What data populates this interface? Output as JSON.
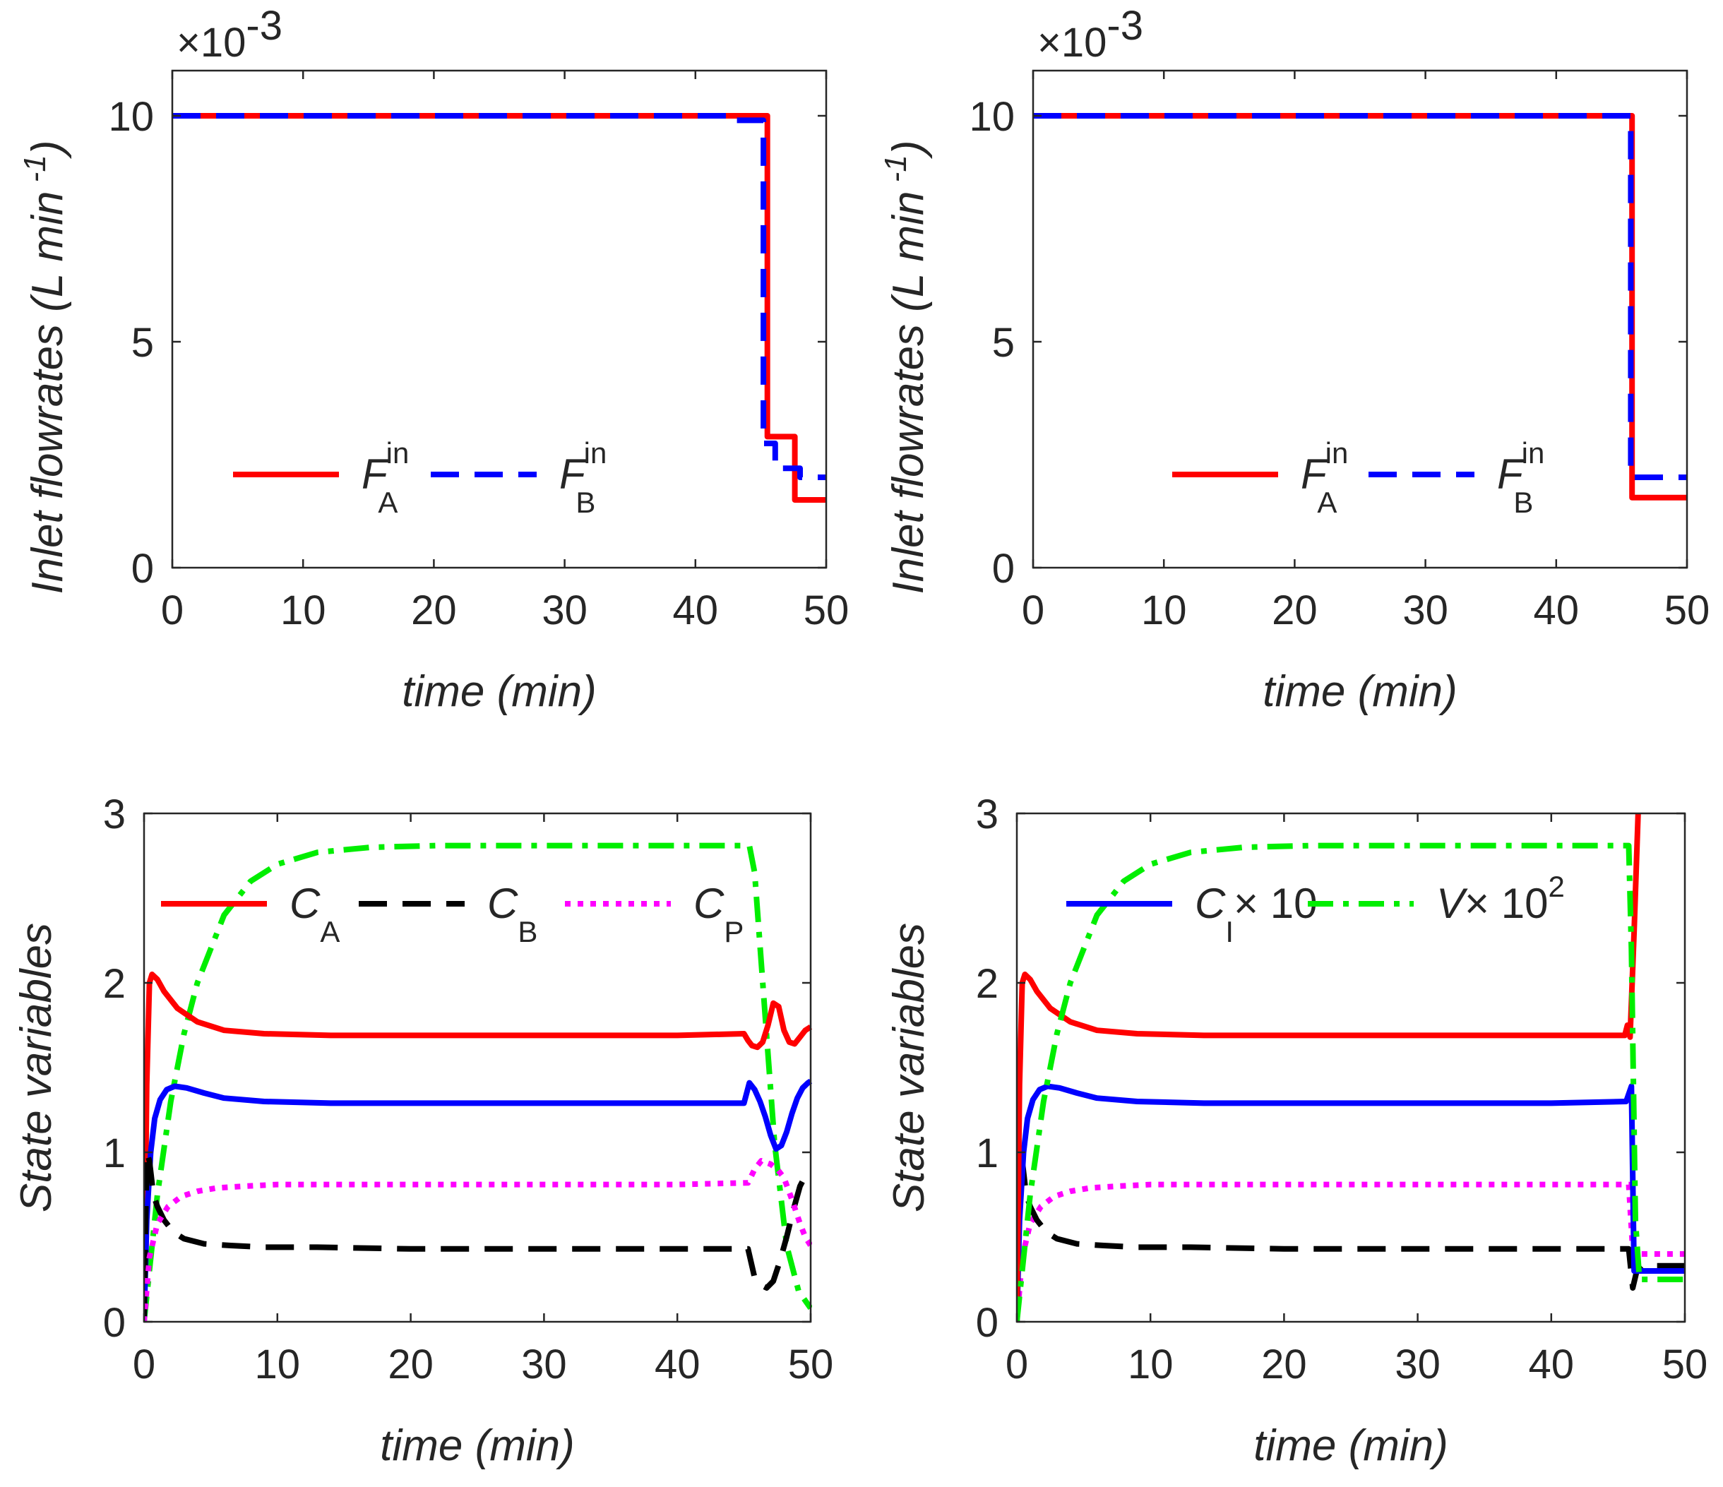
{
  "chart_data": [
    {
      "type": "line",
      "panel": "top-left",
      "xlabel": "time (min)",
      "ylabel_parts": [
        "Inlet flowrates (",
        "L min",
        " -1",
        ")"
      ],
      "y_multiplier": {
        "base": "×10",
        "exp": "-3"
      },
      "xlim": [
        0,
        50
      ],
      "ylim": [
        0,
        11
      ],
      "xticks": [
        "0",
        "10",
        "20",
        "30",
        "40",
        "50"
      ],
      "yticks": [
        "0",
        "5",
        "10"
      ],
      "ytick_values": [
        0,
        5,
        10
      ],
      "legend": [
        {
          "var": "F",
          "sub": "A",
          "sup": "in",
          "color": "#ff0000",
          "style": "solid"
        },
        {
          "var": "F",
          "sub": "B",
          "sup": "in",
          "color": "#0000ff",
          "style": "dashed"
        }
      ],
      "series": [
        {
          "name": "F_A^in",
          "color": "#ff0000",
          "style": "solid",
          "x": [
            0,
            45.5,
            45.5,
            47.6,
            47.6,
            50
          ],
          "y": [
            10,
            10,
            2.9,
            2.9,
            1.5,
            1.5
          ]
        },
        {
          "name": "F_B^in",
          "color": "#0000ff",
          "style": "dashed",
          "x": [
            0,
            43,
            43,
            45.2,
            45.2,
            46.1,
            46.1,
            48,
            48,
            50
          ],
          "y": [
            10,
            10,
            9.9,
            9.9,
            2.75,
            2.75,
            2.2,
            2.2,
            2.0,
            2.0
          ]
        }
      ]
    },
    {
      "type": "line",
      "panel": "top-right",
      "xlabel": "time (min)",
      "ylabel_parts": [
        "Inlet flowrates (",
        "L min",
        " -1",
        ")"
      ],
      "y_multiplier": {
        "base": "×10",
        "exp": "-3"
      },
      "xlim": [
        0,
        50
      ],
      "ylim": [
        0,
        11
      ],
      "xticks": [
        "0",
        "10",
        "20",
        "30",
        "40",
        "50"
      ],
      "yticks": [
        "0",
        "5",
        "10"
      ],
      "ytick_values": [
        0,
        5,
        10
      ],
      "legend": [
        {
          "var": "F",
          "sub": "A",
          "sup": "in",
          "color": "#ff0000",
          "style": "solid"
        },
        {
          "var": "F",
          "sub": "B",
          "sup": "in",
          "color": "#0000ff",
          "style": "dashed"
        }
      ],
      "series": [
        {
          "name": "F_A^in",
          "color": "#ff0000",
          "style": "solid",
          "x": [
            0,
            45.8,
            45.8,
            50
          ],
          "y": [
            10,
            10,
            1.55,
            1.55
          ]
        },
        {
          "name": "F_B^in",
          "color": "#0000ff",
          "style": "dashed",
          "x": [
            0,
            45.7,
            45.7,
            50
          ],
          "y": [
            10,
            10,
            2.0,
            2.0
          ]
        }
      ]
    },
    {
      "type": "line",
      "panel": "bottom-left",
      "xlabel": "time (min)",
      "ylabel": "State variables",
      "xlim": [
        0,
        50
      ],
      "ylim": [
        0,
        3
      ],
      "xticks": [
        "0",
        "10",
        "20",
        "30",
        "40",
        "50"
      ],
      "yticks": [
        "0",
        "1",
        "2",
        "3"
      ],
      "ytick_values": [
        0,
        1,
        2,
        3
      ],
      "legend": [
        {
          "var": "C",
          "sub": "A",
          "color": "#ff0000",
          "style": "solid"
        },
        {
          "var": "C",
          "sub": "B",
          "color": "#000000",
          "style": "dashed"
        },
        {
          "var": "C",
          "sub": "P",
          "color": "#ff00ff",
          "style": "dotted"
        }
      ],
      "series": [
        {
          "name": "V×10^2",
          "color": "#00ee00",
          "style": "dashdot",
          "x": [
            0,
            1,
            2,
            3,
            4,
            6,
            8,
            10,
            13,
            17,
            22,
            30,
            40,
            45.4,
            45.8,
            46.5,
            47.3,
            48.2,
            49.1,
            50
          ],
          "y": [
            0,
            0.75,
            1.3,
            1.7,
            2.0,
            2.4,
            2.6,
            2.7,
            2.77,
            2.8,
            2.81,
            2.81,
            2.81,
            2.81,
            2.65,
            1.9,
            1.05,
            0.45,
            0.18,
            0.08
          ]
        },
        {
          "name": "C_A",
          "color": "#ff0000",
          "style": "solid",
          "x": [
            0,
            0.2,
            0.4,
            0.6,
            1,
            1.5,
            2.5,
            4,
            6,
            9,
            14,
            20,
            30,
            40,
            45,
            45.3,
            45.6,
            46,
            46.4,
            46.8,
            47.2,
            47.6,
            48,
            48.4,
            48.8,
            49.2,
            49.6,
            50
          ],
          "y": [
            0,
            1.4,
            2.0,
            2.05,
            2.02,
            1.95,
            1.85,
            1.77,
            1.72,
            1.7,
            1.69,
            1.69,
            1.69,
            1.69,
            1.7,
            1.66,
            1.63,
            1.62,
            1.65,
            1.75,
            1.88,
            1.86,
            1.72,
            1.65,
            1.64,
            1.68,
            1.72,
            1.74
          ]
        },
        {
          "name": "C_I×10",
          "color": "#0000ff",
          "style": "solid",
          "x": [
            0,
            0.2,
            0.5,
            0.8,
            1.2,
            1.7,
            2.3,
            3.2,
            4.5,
            6,
            9,
            14,
            20,
            30,
            40,
            45,
            45.4,
            45.8,
            46.2,
            46.6,
            47,
            47.4,
            47.8,
            48.2,
            48.6,
            49,
            49.4,
            49.8,
            50
          ],
          "y": [
            0,
            0.6,
            1.0,
            1.2,
            1.31,
            1.37,
            1.39,
            1.38,
            1.35,
            1.32,
            1.3,
            1.29,
            1.29,
            1.29,
            1.29,
            1.29,
            1.41,
            1.37,
            1.3,
            1.21,
            1.1,
            1.02,
            1.04,
            1.12,
            1.23,
            1.32,
            1.38,
            1.41,
            1.42
          ]
        },
        {
          "name": "C_B",
          "color": "#000000",
          "style": "dashed",
          "x": [
            0,
            0.2,
            0.4,
            0.7,
            1,
            1.5,
            2.2,
            3,
            4.5,
            6.5,
            9,
            13,
            20,
            30,
            40,
            45.3,
            45.8,
            46.2,
            46.7,
            47.2,
            47.7,
            48.2,
            48.7,
            49.2,
            49.6,
            50
          ],
          "y": [
            0,
            1.0,
            0.95,
            0.75,
            0.68,
            0.6,
            0.53,
            0.49,
            0.46,
            0.45,
            0.44,
            0.44,
            0.43,
            0.43,
            0.43,
            0.43,
            0.26,
            0.22,
            0.2,
            0.24,
            0.36,
            0.5,
            0.66,
            0.8,
            0.86,
            0.88
          ]
        },
        {
          "name": "C_P",
          "color": "#ff00ff",
          "style": "dotted",
          "x": [
            0,
            0.4,
            1,
            1.8,
            2.8,
            4,
            5.5,
            7.5,
            10,
            14,
            20,
            30,
            40,
            45.3,
            45.8,
            46.3,
            47,
            47.5,
            48,
            48.6,
            49.2,
            49.6,
            50
          ],
          "y": [
            0,
            0.38,
            0.58,
            0.68,
            0.74,
            0.77,
            0.79,
            0.8,
            0.81,
            0.81,
            0.81,
            0.81,
            0.81,
            0.82,
            0.9,
            0.95,
            0.93,
            0.9,
            0.85,
            0.72,
            0.58,
            0.5,
            0.45
          ]
        }
      ]
    },
    {
      "type": "line",
      "panel": "bottom-right",
      "xlabel": "time (min)",
      "ylabel": "State variables",
      "xlim": [
        0,
        50
      ],
      "ylim": [
        0,
        3
      ],
      "xticks": [
        "0",
        "10",
        "20",
        "30",
        "40",
        "50"
      ],
      "yticks": [
        "0",
        "1",
        "2",
        "3"
      ],
      "ytick_values": [
        0,
        1,
        2,
        3
      ],
      "legend": [
        {
          "var": "C",
          "sub": "I",
          "suffix": "× 10",
          "color": "#0000ff",
          "style": "solid"
        },
        {
          "var": "V",
          "suffix": "× 10",
          "suffix_sup": "2",
          "color": "#00ee00",
          "style": "dashdot"
        }
      ],
      "series": [
        {
          "name": "C_P",
          "color": "#ff00ff",
          "style": "dotted",
          "x": [
            0,
            0.4,
            1,
            1.8,
            2.8,
            4,
            5.5,
            7.5,
            10,
            14,
            20,
            30,
            40,
            45.8,
            46.1,
            46.5,
            50
          ],
          "y": [
            0,
            0.38,
            0.58,
            0.68,
            0.74,
            0.77,
            0.79,
            0.8,
            0.81,
            0.81,
            0.81,
            0.81,
            0.81,
            0.81,
            0.42,
            0.4,
            0.4
          ]
        },
        {
          "name": "C_B",
          "color": "#000000",
          "style": "dashed",
          "x": [
            0,
            0.2,
            0.4,
            0.7,
            1,
            1.5,
            2.2,
            3,
            4.5,
            6.5,
            9,
            13,
            20,
            30,
            40,
            45.8,
            46.1,
            46.4,
            46.8,
            50
          ],
          "y": [
            0,
            1.0,
            0.95,
            0.75,
            0.68,
            0.6,
            0.53,
            0.49,
            0.46,
            0.45,
            0.44,
            0.44,
            0.43,
            0.43,
            0.43,
            0.43,
            0.2,
            0.3,
            0.33,
            0.33
          ]
        },
        {
          "name": "C_I×10",
          "color": "#0000ff",
          "style": "solid",
          "x": [
            0,
            0.2,
            0.5,
            0.8,
            1.2,
            1.7,
            2.3,
            3.2,
            4.5,
            6,
            9,
            14,
            20,
            30,
            40,
            45.6,
            46.0,
            46.2,
            46.5,
            50
          ],
          "y": [
            0,
            0.6,
            1.0,
            1.2,
            1.31,
            1.37,
            1.39,
            1.38,
            1.35,
            1.32,
            1.3,
            1.29,
            1.29,
            1.29,
            1.29,
            1.3,
            1.39,
            0.3,
            0.3,
            0.3
          ]
        },
        {
          "name": "C_A",
          "color": "#ff0000",
          "style": "solid",
          "x": [
            0,
            0.2,
            0.4,
            0.6,
            1,
            1.5,
            2.5,
            4,
            6,
            9,
            14,
            20,
            30,
            40,
            45.5,
            45.7,
            45.9,
            46.2,
            46.5
          ],
          "y": [
            0,
            1.4,
            2.0,
            2.05,
            2.02,
            1.95,
            1.85,
            1.77,
            1.72,
            1.7,
            1.69,
            1.69,
            1.69,
            1.69,
            1.69,
            1.75,
            1.68,
            2.3,
            3.0
          ]
        },
        {
          "name": "V×10^2",
          "color": "#00ee00",
          "style": "dashdot",
          "x": [
            0,
            1,
            2,
            3,
            4,
            6,
            8,
            10,
            13,
            17,
            22,
            30,
            40,
            45.8,
            46.0,
            46.3,
            46.6,
            50
          ],
          "y": [
            0,
            0.75,
            1.3,
            1.7,
            2.0,
            2.4,
            2.6,
            2.7,
            2.77,
            2.8,
            2.81,
            2.81,
            2.81,
            2.81,
            2.2,
            0.6,
            0.25,
            0.25
          ]
        }
      ]
    }
  ]
}
